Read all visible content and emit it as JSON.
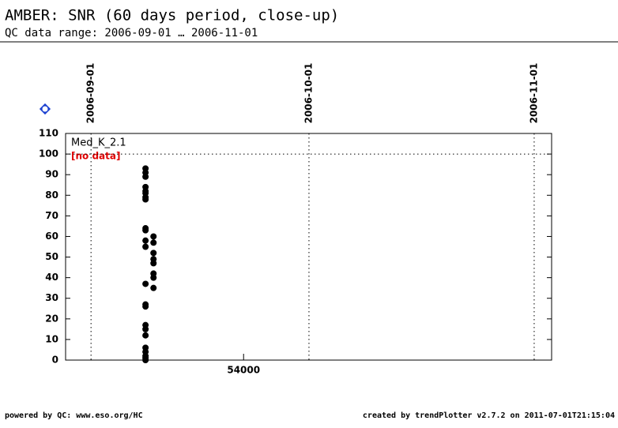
{
  "chart_data": {
    "type": "scatter",
    "title": "AMBER: SNR (60 days period, close-up)",
    "subtitle": "QC data range: 2006-09-01 … 2006-11-01",
    "panel_label": "Med_K_2.1",
    "status_label": "[no data]",
    "footer_left": "powered by QC: www.eso.org/HC",
    "footer_right": "created by trendPlotter v2.7.2 on 2011-07-01T21:15:04",
    "x": [
      53986.5,
      53986.5,
      53986.5,
      53986.5,
      53986.5,
      53986.5,
      53986.5,
      53986.5,
      53986.5,
      53986.5,
      53986.5,
      53986.5,
      53986.5,
      53986.5,
      53986.5,
      53986.5,
      53986.5,
      53986.5,
      53986.5,
      53986.5,
      53986.5,
      53986.5,
      53986.5,
      53987.6,
      53987.6,
      53987.6,
      53987.6,
      53987.6,
      53987.6,
      53987.6,
      53987.6
    ],
    "values": [
      93,
      91,
      89,
      84,
      82,
      81,
      79,
      78,
      64,
      63,
      58,
      55,
      37,
      27,
      26,
      17,
      15,
      12,
      6,
      4,
      2,
      1,
      0,
      60,
      57,
      52,
      49,
      47,
      42,
      40,
      35
    ],
    "color": "#000000",
    "xlim": [
      53975.5,
      54042.4
    ],
    "xticks": [
      54000
    ],
    "top_xticks": [
      {
        "value": 53979,
        "label": "2006-09-01"
      },
      {
        "value": 54009,
        "label": "2006-10-01"
      },
      {
        "value": 54040,
        "label": "2006-11-01"
      }
    ],
    "ylim": [
      0,
      110
    ],
    "yticks": [
      0,
      10,
      20,
      30,
      40,
      50,
      60,
      70,
      80,
      90,
      100,
      110
    ],
    "reference_line": 100
  }
}
